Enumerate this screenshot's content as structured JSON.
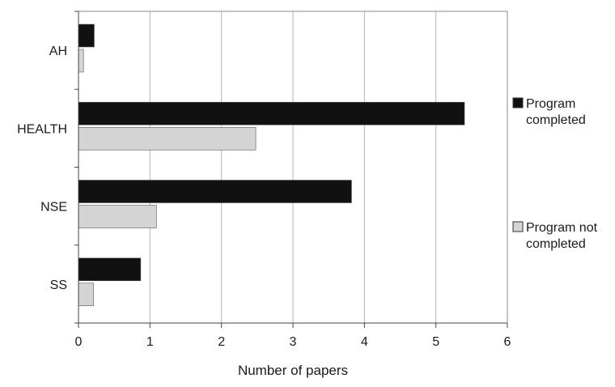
{
  "chart_data": {
    "type": "bar",
    "orientation": "horizontal",
    "categories": [
      "AH",
      "HEALTH",
      "NSE",
      "SS"
    ],
    "series": [
      {
        "name": "Program completed",
        "values": [
          0.22,
          5.4,
          3.82,
          0.87
        ],
        "color": "#111111"
      },
      {
        "name": "Program not completed",
        "values": [
          0.07,
          2.48,
          1.09,
          0.21
        ],
        "color": "#d4d4d4"
      }
    ],
    "title": "",
    "xlabel": "Number of papers",
    "ylabel": "",
    "xlim": [
      0,
      6
    ],
    "xticks": [
      "0",
      "1",
      "2",
      "3",
      "4",
      "5",
      "6"
    ],
    "grid": "vertical",
    "legend_placement": "right",
    "legend_lines": [
      [
        "Program",
        "completed"
      ],
      [
        "Program not",
        "completed"
      ]
    ]
  }
}
